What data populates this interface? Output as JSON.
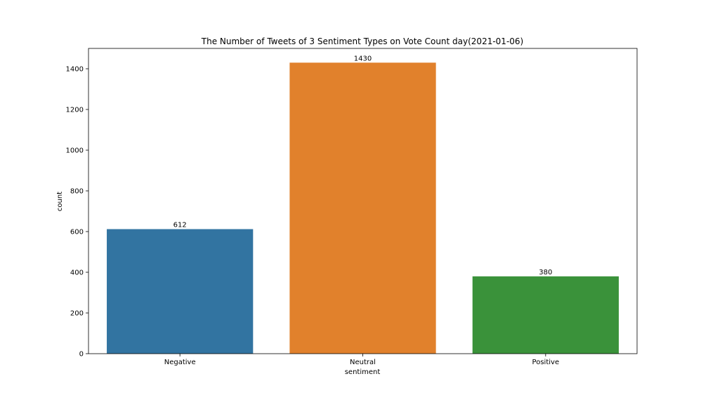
{
  "chart_data": {
    "type": "bar",
    "title": "The Number of Tweets of 3 Sentiment Types on Vote Count day(2021-01-06)",
    "xlabel": "sentiment",
    "ylabel": "count",
    "categories": [
      "Negative",
      "Neutral",
      "Positive"
    ],
    "values": [
      612,
      1430,
      380
    ],
    "data_labels": [
      "612",
      "1430",
      "380"
    ],
    "colors": [
      "#3274a1",
      "#e1812c",
      "#3a923a"
    ],
    "ylim": [
      0,
      1500
    ],
    "yticks": [
      0,
      200,
      400,
      600,
      800,
      1000,
      1200,
      1400
    ],
    "grid": false,
    "legend": "none"
  }
}
